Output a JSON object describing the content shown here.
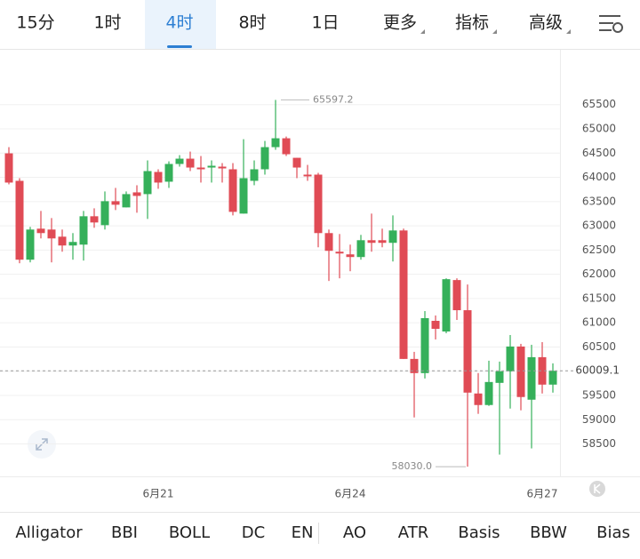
{
  "tabs": [
    "15分",
    "1时",
    "4时",
    "8时",
    "1日",
    "更多",
    "指标",
    "高级"
  ],
  "indicators": [
    "Alligator",
    "BBI",
    "BOLL",
    "DC",
    "EN",
    "AO",
    "ATR",
    "Basis",
    "BBW",
    "Bias"
  ],
  "chart_data": {
    "type": "candlestick",
    "categories": [
      null,
      null,
      null,
      null,
      null,
      null,
      null,
      null,
      null,
      null,
      null,
      null,
      null,
      null,
      "6月21",
      null,
      null,
      null,
      null,
      null,
      null,
      null,
      null,
      null,
      null,
      null,
      null,
      null,
      null,
      null,
      null,
      null,
      "6月24",
      null,
      null,
      null,
      null,
      null,
      null,
      null,
      null,
      null,
      null,
      null,
      null,
      null,
      null,
      null,
      null,
      null,
      "6月27",
      null
    ],
    "open": [
      64495,
      63928,
      62301,
      62941,
      62923,
      62776,
      62594,
      62612,
      63197,
      63014,
      63508,
      63380,
      63690,
      63654,
      64111,
      63910,
      64276,
      64385,
      64202,
      64202,
      64221,
      64166,
      63252,
      63928,
      64166,
      64623,
      64806,
      64403,
      64056,
      64056,
      62850,
      62466,
      62411,
      62356,
      62703,
      62703,
      62649,
      62904,
      60254,
      59962,
      61040,
      60820,
      61881,
      61259,
      59541,
      59303,
      59760,
      59998,
      60510,
      59413,
      60290,
      59724
    ],
    "high": [
      64623,
      63983,
      62978,
      63307,
      63160,
      62923,
      62850,
      63307,
      63361,
      63709,
      63782,
      63709,
      63837,
      64349,
      64166,
      64330,
      64458,
      64531,
      64440,
      64349,
      64294,
      64294,
      64787,
      64349,
      64751,
      65597.2,
      64842,
      64403,
      64257,
      64093,
      62923,
      62831,
      62612,
      62813,
      63252,
      62941,
      63215,
      62941,
      60400,
      61241,
      61150,
      61917,
      61917,
      61789,
      59962,
      60217,
      60199,
      60747,
      60565,
      60546,
      60601,
      60163
    ],
    "low": [
      63855,
      62228,
      62246,
      62740,
      62246,
      62466,
      62301,
      62283,
      62959,
      62923,
      63325,
      63380,
      63270,
      63142,
      63764,
      63782,
      64221,
      64129,
      63892,
      63892,
      63892,
      63215,
      63252,
      63837,
      64056,
      64568,
      64440,
      63983,
      63928,
      62557,
      61862,
      61917,
      62063,
      62301,
      62466,
      62557,
      62264,
      60254,
      59047,
      59851,
      60656,
      60784,
      61058,
      58030,
      59121,
      59285,
      58280,
      59230,
      59194,
      58408,
      59541,
      59559
    ],
    "close": [
      63892,
      62301,
      62923,
      62850,
      62740,
      62594,
      62667,
      63197,
      63069,
      63508,
      63435,
      63654,
      63617,
      64129,
      63892,
      64276,
      64385,
      64202,
      64166,
      64239,
      64184,
      63288,
      63983,
      64166,
      64623,
      64806,
      64477,
      64202,
      64020,
      62850,
      62484,
      62429,
      62356,
      62703,
      62649,
      62649,
      62904,
      60254,
      59962,
      61095,
      60875,
      61899,
      61259,
      59559,
      59303,
      59778,
      59998,
      60510,
      59468,
      60290,
      59724,
      60009.1
    ],
    "up_color": "#35b05a",
    "down_color": "#e04b55",
    "ylim": [
      57850,
      66650
    ],
    "yticks": [
      58500,
      59000,
      59500,
      60000,
      60500,
      61000,
      61500,
      62000,
      62500,
      63000,
      63500,
      64000,
      64500,
      65000,
      65500
    ],
    "grid": true,
    "max_marker": 65597.2,
    "min_marker": {
      "value": 58030,
      "label": "58030.0"
    },
    "last_price": 60009.1
  }
}
